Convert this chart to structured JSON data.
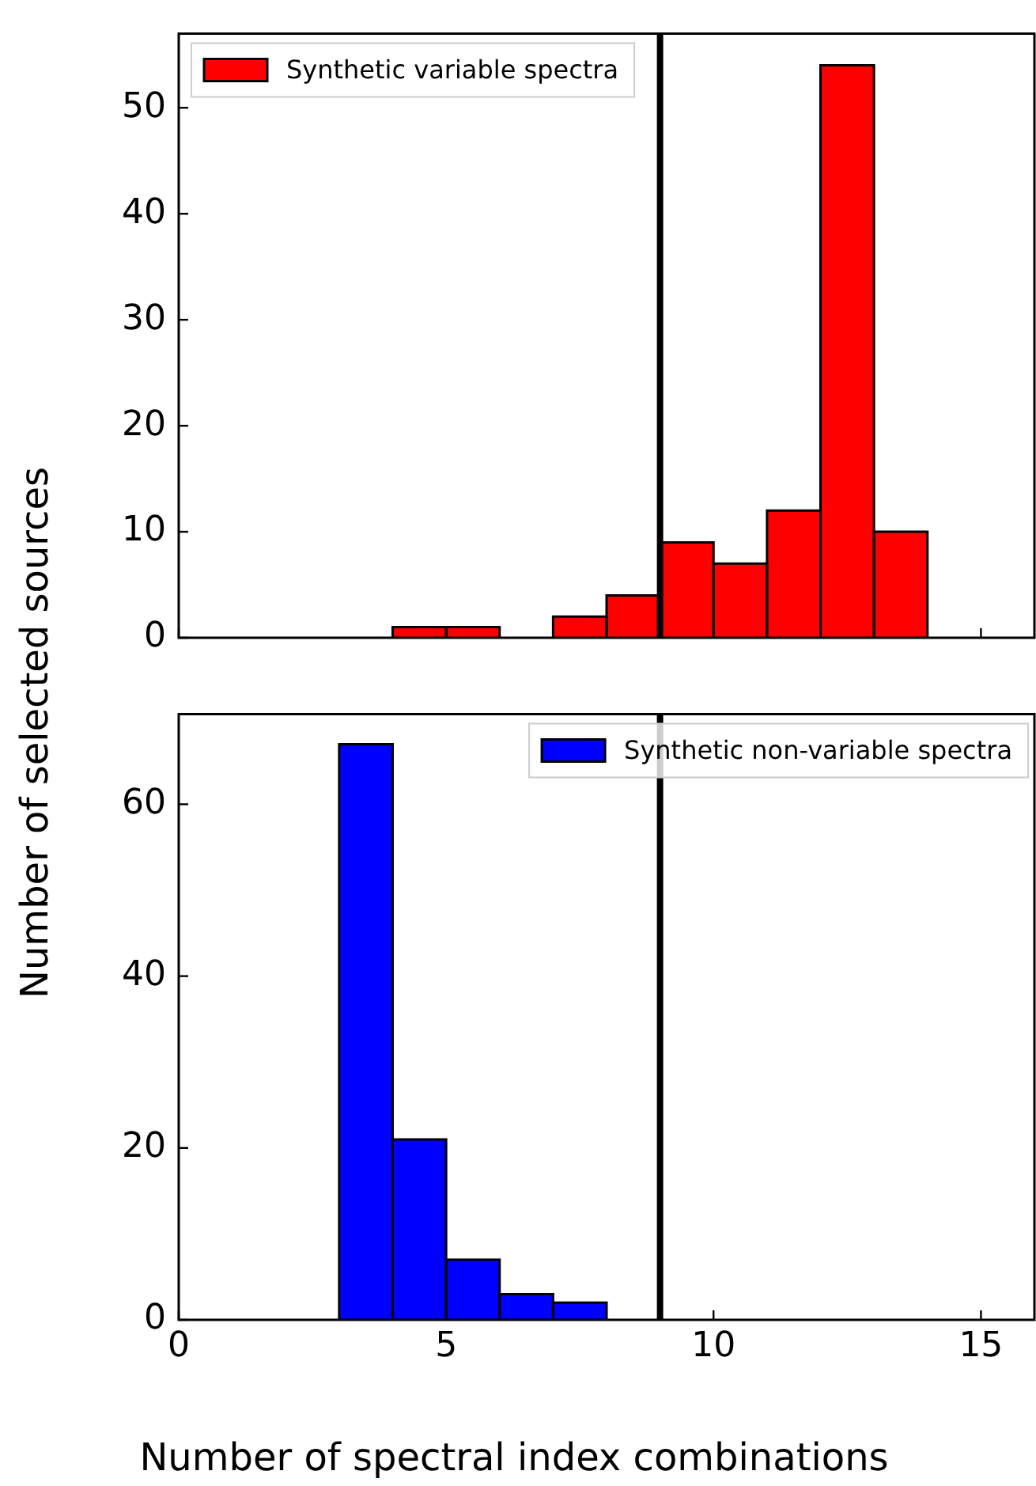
{
  "chart_data": [
    {
      "type": "histogram",
      "ylabel": "Number of selected sources",
      "bins": [
        4,
        5,
        6,
        7,
        8,
        9,
        10,
        11,
        12,
        13,
        14
      ],
      "series": [
        {
          "name": "Synthetic variable spectra",
          "color": "#ff0000",
          "values": [
            1,
            1,
            0,
            2,
            4,
            9,
            7,
            12,
            54,
            10
          ]
        }
      ],
      "xlim": [
        0,
        16
      ],
      "ylim": [
        0,
        57
      ],
      "xticks": [
        0,
        5,
        10,
        15
      ],
      "yticks": [
        0,
        10,
        20,
        30,
        40,
        50
      ],
      "tick_labels": "y",
      "legend": "top left",
      "ref_lines": [
        {
          "axis": "x",
          "value": 9,
          "color": "#000000"
        }
      ]
    },
    {
      "type": "histogram",
      "xlabel": "Number of spectral index combinations",
      "bins": [
        3,
        4,
        5,
        6,
        7,
        8
      ],
      "series": [
        {
          "name": "Synthetic non-variable spectra",
          "color": "#0000ff",
          "values": [
            67,
            21,
            7,
            3,
            2
          ]
        }
      ],
      "xlim": [
        0,
        16
      ],
      "ylim": [
        0,
        70.5
      ],
      "xticks": [
        0,
        5,
        10,
        15
      ],
      "yticks": [
        0,
        20,
        40,
        60
      ],
      "legend": "top right",
      "ref_lines": [
        {
          "axis": "x",
          "value": 9,
          "color": "#000000"
        }
      ]
    }
  ]
}
